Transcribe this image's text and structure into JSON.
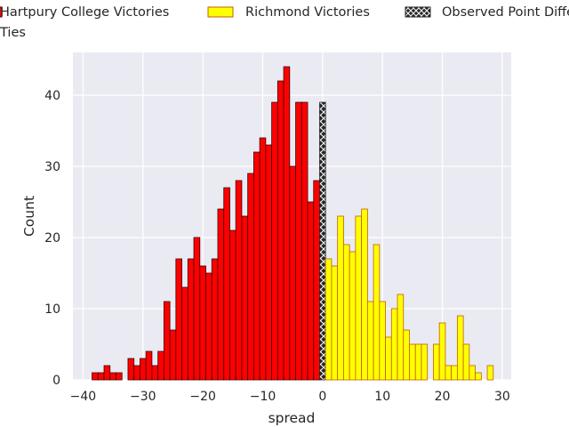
{
  "chart_data": {
    "type": "bar",
    "title": "",
    "xlabel": "spread",
    "ylabel": "Count",
    "xlim": [
      -41.7,
      31.5
    ],
    "ylim": [
      0,
      46
    ],
    "xticks": [
      -40,
      -30,
      -20,
      -10,
      0,
      10,
      20,
      30
    ],
    "yticks": [
      0,
      10,
      20,
      30,
      40
    ],
    "grid": true,
    "legend_placement": "top",
    "legend": [
      {
        "label": "Hartpury College Victories",
        "color": "#ff0000"
      },
      {
        "label": "Richmond Victories",
        "color": "#ffff00"
      },
      {
        "label": "Observed Point Differential",
        "color": "#262626"
      },
      {
        "label": "Ties",
        "color": "#ffffff"
      }
    ],
    "series": [
      {
        "name": "Hartpury College Victories",
        "color": "#ff0000",
        "edgecolor": "#3a0000",
        "x": [
          -38,
          -37,
          -36,
          -35,
          -34,
          -33,
          -32,
          -31,
          -30,
          -29,
          -28,
          -27,
          -26,
          -25,
          -24,
          -23,
          -22,
          -21,
          -20,
          -19,
          -18,
          -17,
          -16,
          -15,
          -14,
          -13,
          -12,
          -11,
          -10,
          -9,
          -8,
          -7,
          -6,
          -5,
          -4,
          -3,
          -2,
          -1
        ],
        "values": [
          1,
          1,
          2,
          1,
          1,
          0,
          3,
          2,
          3,
          4,
          2,
          4,
          11,
          7,
          17,
          13,
          17,
          20,
          16,
          15,
          17,
          24,
          27,
          21,
          28,
          23,
          29,
          32,
          34,
          33,
          39,
          42,
          44,
          30,
          39,
          39,
          25,
          28
        ]
      },
      {
        "name": "Observed Point Differential",
        "color": "#262626",
        "x": [
          0
        ],
        "values": [
          39
        ]
      },
      {
        "name": "Richmond Victories",
        "color": "#ffff00",
        "edgecolor": "#c06000",
        "x": [
          1,
          2,
          3,
          4,
          5,
          6,
          7,
          8,
          9,
          10,
          11,
          12,
          13,
          14,
          15,
          16,
          17,
          18,
          19,
          20,
          21,
          22,
          23,
          24,
          25,
          26,
          27,
          28
        ],
        "values": [
          17,
          16,
          23,
          19,
          18,
          23,
          24,
          11,
          19,
          11,
          6,
          10,
          12,
          7,
          5,
          5,
          5,
          0,
          5,
          8,
          2,
          2,
          9,
          5,
          2,
          1,
          0,
          2
        ]
      }
    ]
  }
}
